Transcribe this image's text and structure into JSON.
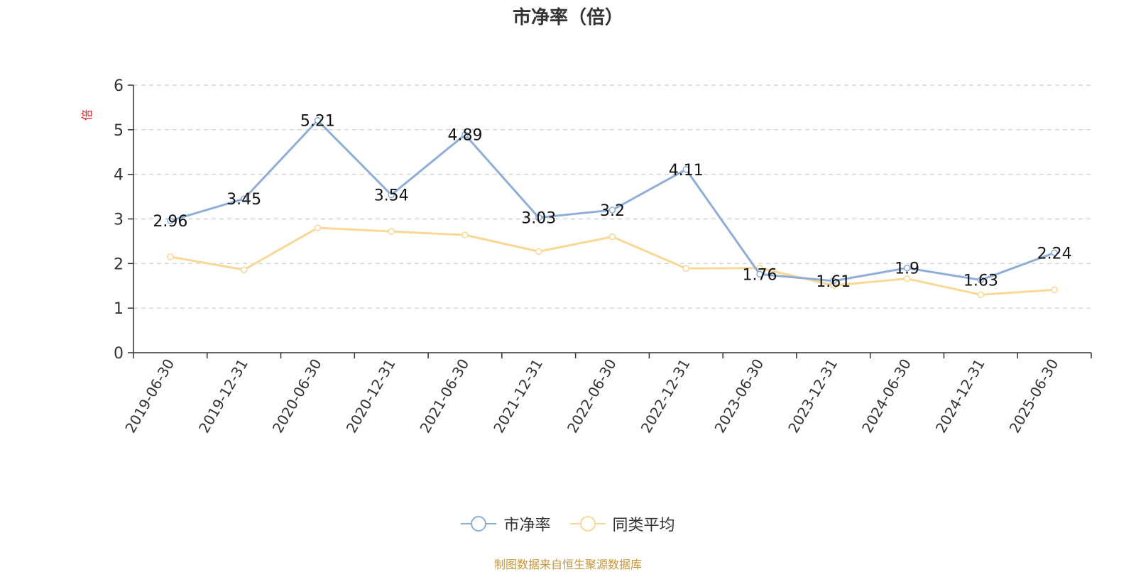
{
  "chart_data": {
    "type": "line",
    "title": "市净率（倍）",
    "ylabel": "倍",
    "ylim": [
      0,
      6
    ],
    "yticks": [
      0,
      1,
      2,
      3,
      4,
      5,
      6
    ],
    "grid": true,
    "legend_position": "bottom",
    "categories": [
      "2019-06-30",
      "2019-12-31",
      "2020-06-30",
      "2020-12-31",
      "2021-06-30",
      "2021-12-31",
      "2022-06-30",
      "2022-12-31",
      "2023-06-30",
      "2023-12-31",
      "2024-06-30",
      "2024-12-31",
      "2025-06-30"
    ],
    "series": [
      {
        "name": "市净率",
        "color": "#8eaed8",
        "values": [
          2.96,
          3.45,
          5.21,
          3.54,
          4.89,
          3.03,
          3.2,
          4.11,
          1.76,
          1.61,
          1.9,
          1.63,
          2.24
        ],
        "labels": [
          "2.96",
          "3.45",
          "5.21",
          "3.54",
          "4.89",
          "3.03",
          "3.2",
          "4.11",
          "1.76",
          "1.61",
          "1.9",
          "1.63",
          "2.24"
        ]
      },
      {
        "name": "同类平均",
        "color": "#f9d896",
        "values": [
          2.15,
          1.86,
          2.8,
          2.72,
          2.64,
          2.27,
          2.6,
          1.89,
          1.9,
          1.51,
          1.66,
          1.3,
          1.41
        ]
      }
    ]
  },
  "source_note": "制图数据来自恒生聚源数据库"
}
